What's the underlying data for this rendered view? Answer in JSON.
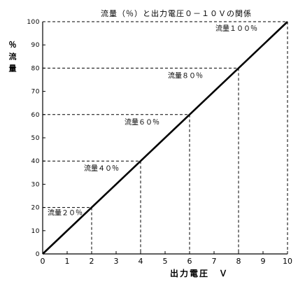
{
  "chart_data": {
    "type": "line",
    "title": "流量（％）と出力電圧０－１０Ｖの関係",
    "xlabel": "出力電圧　Ｖ",
    "ylabel": "％流量",
    "xlim": [
      0,
      10
    ],
    "ylim": [
      0,
      100
    ],
    "xticks": [
      0,
      1,
      2,
      3,
      4,
      5,
      6,
      7,
      8,
      9,
      10
    ],
    "yticks": [
      0,
      10,
      20,
      30,
      40,
      50,
      60,
      70,
      80,
      90,
      100
    ],
    "grid": false,
    "series": [
      {
        "x": [
          0,
          2,
          4,
          6,
          8,
          10
        ],
        "y": [
          0,
          20,
          40,
          60,
          80,
          100
        ],
        "color": "#000000"
      }
    ],
    "annotations": [
      {
        "text": "流量２０％",
        "x": 2,
        "y": 20
      },
      {
        "text": "流量４０％",
        "x": 4,
        "y": 40
      },
      {
        "text": "流量６０％",
        "x": 6,
        "y": 60
      },
      {
        "text": "流量８０％",
        "x": 8,
        "y": 80
      },
      {
        "text": "流量１００％",
        "x": 10,
        "y": 100
      }
    ]
  }
}
